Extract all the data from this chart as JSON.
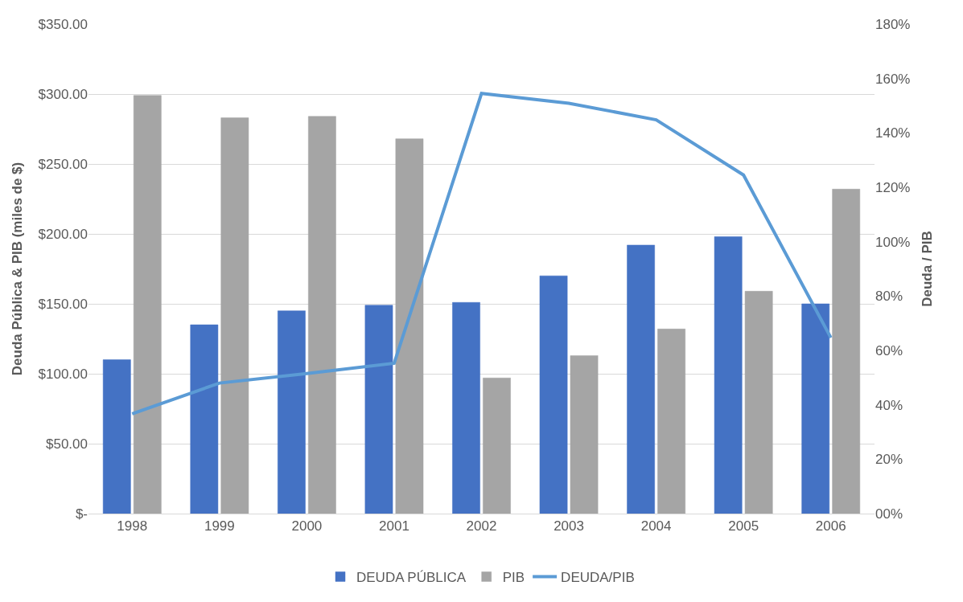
{
  "chart_data": {
    "type": "bar",
    "categories": [
      "1998",
      "1999",
      "2000",
      "2001",
      "2002",
      "2003",
      "2004",
      "2005",
      "2006"
    ],
    "ylabel": "Deuda Pública & PIB (miles de $)",
    "y2label": "Deuda / PIB",
    "series": [
      {
        "name": "DEUDA PÚBLICA",
        "color": "#4472c4",
        "values": [
          110,
          135,
          145,
          149,
          151,
          170,
          192,
          198,
          150
        ]
      },
      {
        "name": "PIB",
        "color": "#a5a5a5",
        "values": [
          299,
          283,
          284,
          268,
          97,
          113,
          132,
          159,
          232
        ]
      },
      {
        "name": "DEUDA/PIB",
        "type": "line",
        "axis": "y2",
        "color": "#5b9bd5",
        "values": [
          36.7,
          48,
          51.5,
          55.3,
          154.5,
          150.9,
          144.8,
          124.5,
          64.7
        ]
      }
    ],
    "ylim": [
      0,
      350
    ],
    "yticks": [
      {
        "value": 0,
        "label": "$-"
      },
      {
        "value": 50,
        "label": "$50.00"
      },
      {
        "value": 100,
        "label": "$100.00"
      },
      {
        "value": 150,
        "label": "$150.00"
      },
      {
        "value": 200,
        "label": "$200.00"
      },
      {
        "value": 250,
        "label": "$250.00"
      },
      {
        "value": 300,
        "label": "$300.00"
      },
      {
        "value": 350,
        "label": "$350.00"
      }
    ],
    "y2lim": [
      0,
      180
    ],
    "y2ticks": [
      {
        "value": 0,
        "label": "00%"
      },
      {
        "value": 20,
        "label": "20%"
      },
      {
        "value": 40,
        "label": "40%"
      },
      {
        "value": 60,
        "label": "60%"
      },
      {
        "value": 80,
        "label": "80%"
      },
      {
        "value": 100,
        "label": "100%"
      },
      {
        "value": 120,
        "label": "120%"
      },
      {
        "value": 140,
        "label": "140%"
      },
      {
        "value": 160,
        "label": "160%"
      },
      {
        "value": 180,
        "label": "180%"
      }
    ],
    "grid": "y",
    "legend": "bottom",
    "marker": "none",
    "line_style": "solid"
  }
}
